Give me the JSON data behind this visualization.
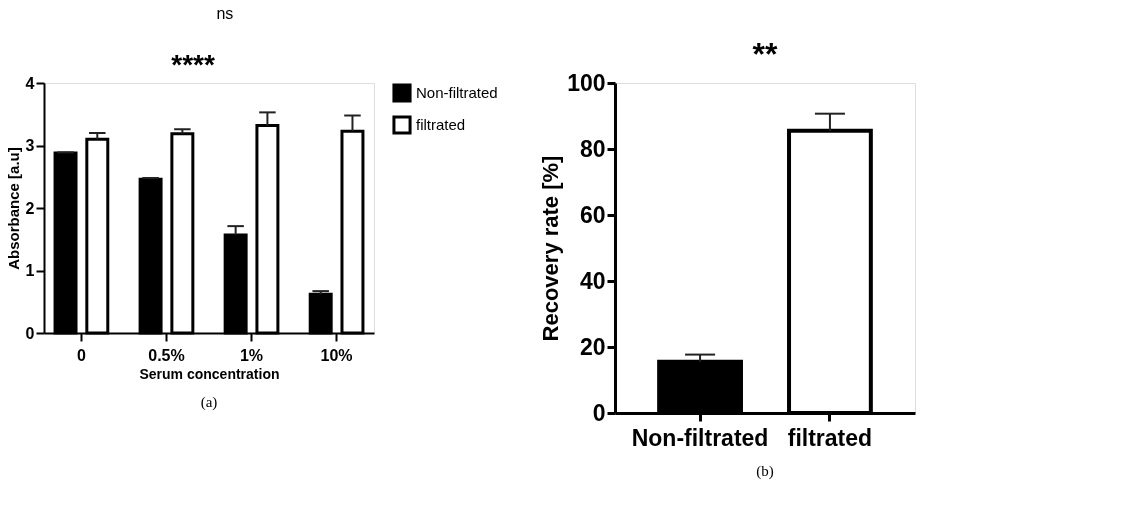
{
  "chart_data": [
    {
      "type": "bar",
      "xlabel": "Serum concentration",
      "ylabel": "Absorbance [a.u]",
      "categories": [
        "0",
        "0.5%",
        "1%",
        "10%"
      ],
      "series": [
        {
          "name": "Non-filtrated",
          "color": "#000000",
          "values": [
            2.88,
            2.46,
            1.57,
            0.62
          ],
          "errors": [
            [
              2.88,
              2.89
            ],
            [
              2.46,
              2.48
            ],
            [
              1.57,
              1.71
            ],
            [
              0.62,
              0.67
            ]
          ]
        },
        {
          "name": "filtrated",
          "color": "#ffffff",
          "values": [
            3.1,
            3.19,
            3.32,
            3.23
          ],
          "errors": [
            [
              3.1,
              3.2
            ],
            [
              3.19,
              3.26
            ],
            [
              3.32,
              3.53
            ],
            [
              3.23,
              3.48
            ]
          ]
        }
      ],
      "ylim": [
        0,
        4
      ],
      "yticks": [
        0,
        1,
        2,
        3,
        4
      ],
      "legend": "top right",
      "annotations": [
        "****",
        "ns",
        "(a)"
      ]
    },
    {
      "type": "bar",
      "ylabel": "Recovery rate [%]",
      "categories": [
        "Non-filtrated",
        "filtrated"
      ],
      "values": [
        15.5,
        85.5
      ],
      "colors": [
        "#000000",
        "#ffffff"
      ],
      "errors": [
        [
          15.5,
          17.7
        ],
        [
          85.5,
          90.7
        ]
      ],
      "ylim": [
        0,
        100
      ],
      "yticks": [
        0,
        20,
        40,
        60,
        80,
        100
      ],
      "annotations": [
        "**",
        "(b)"
      ]
    }
  ]
}
